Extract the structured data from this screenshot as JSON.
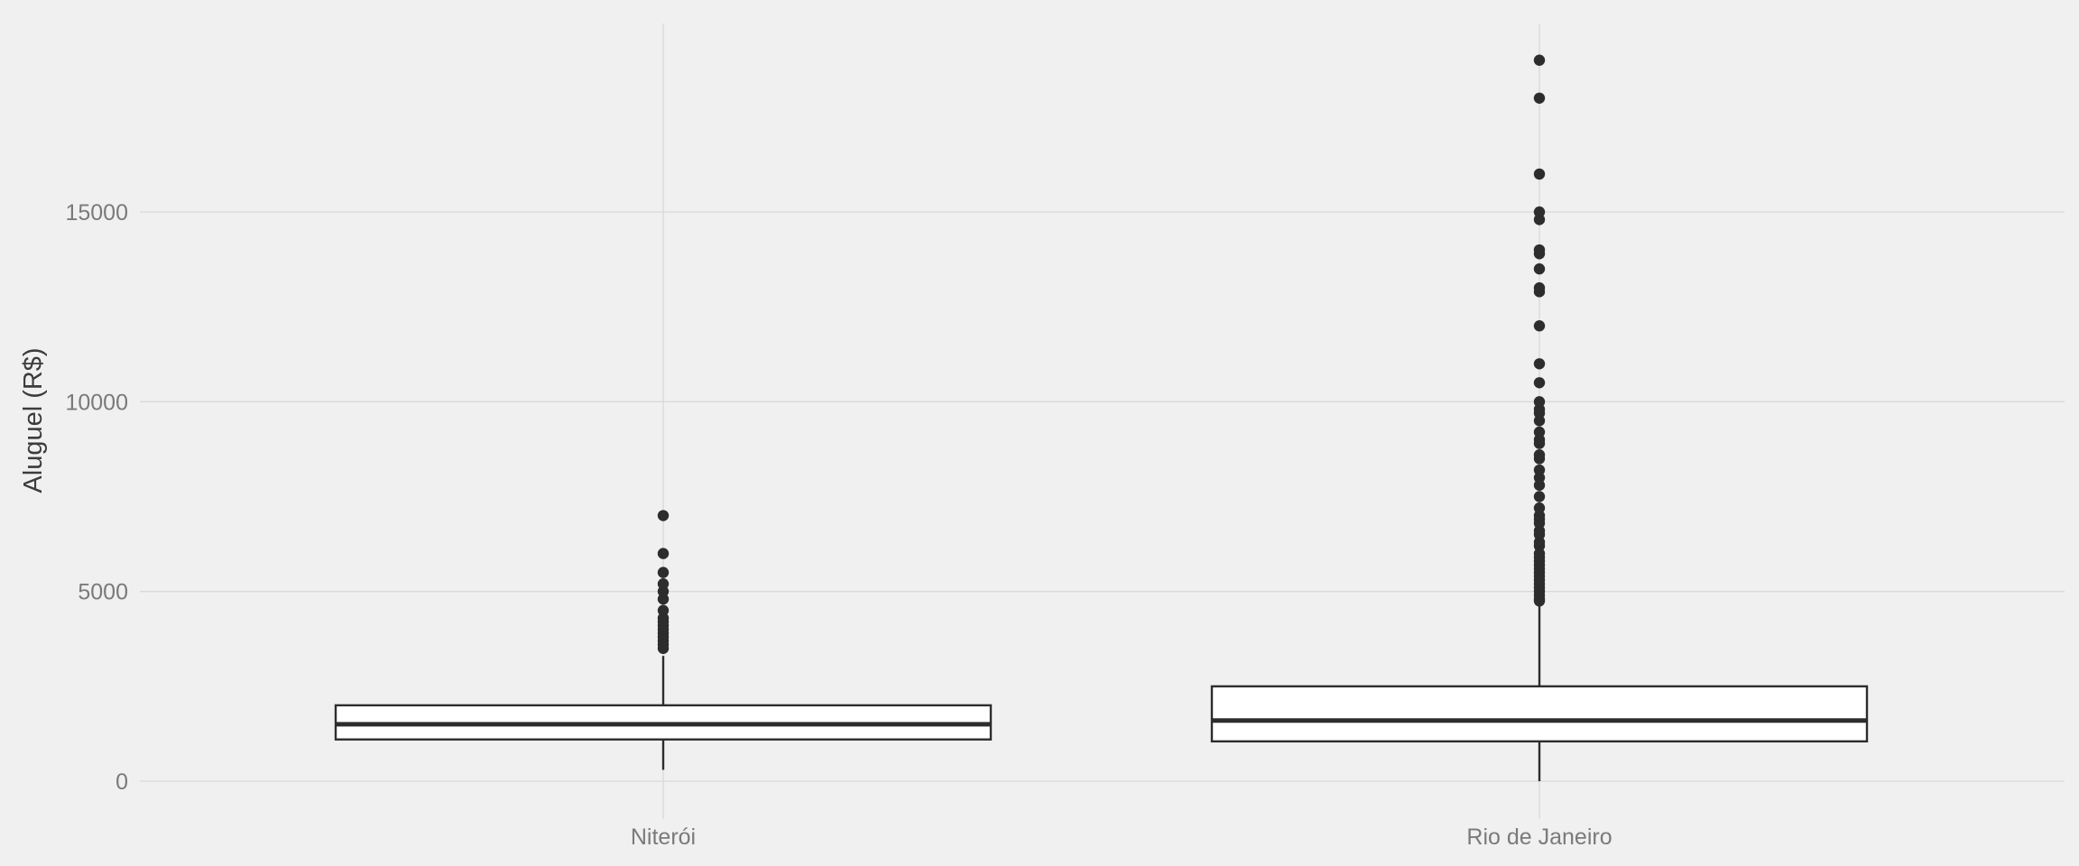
{
  "chart_data": {
    "type": "box",
    "title": "",
    "xlabel": "",
    "ylabel": "Aluguel (R$)",
    "ylim": [
      -400,
      20000
    ],
    "yticks": [
      0,
      5000,
      10000,
      15000
    ],
    "grid": true,
    "categories": [
      "Niterói",
      "Rio de Janeiro"
    ],
    "boxes": [
      {
        "category": "Niterói",
        "whisker_low": 300,
        "q1": 1100,
        "median": 1500,
        "q3": 2000,
        "whisker_high": 3300,
        "outliers": [
          3500,
          3600,
          3700,
          3800,
          3900,
          4000,
          4100,
          4200,
          4300,
          4500,
          4800,
          5000,
          5200,
          5500,
          6000,
          7000
        ]
      },
      {
        "category": "Rio de Janeiro",
        "whisker_low": 0,
        "q1": 1050,
        "median": 1600,
        "q3": 2500,
        "whisker_high": 4700,
        "outliers": [
          4750,
          4800,
          4900,
          5000,
          5100,
          5200,
          5300,
          5400,
          5500,
          5600,
          5700,
          5800,
          5900,
          6000,
          6200,
          6300,
          6500,
          6600,
          6800,
          6900,
          7000,
          7200,
          7500,
          7800,
          8000,
          8200,
          8500,
          8600,
          8900,
          9000,
          9200,
          9500,
          9700,
          9800,
          10000,
          10500,
          11000,
          12000,
          12900,
          13000,
          13500,
          13900,
          14000,
          14800,
          15000,
          16000,
          18000,
          19000
        ]
      }
    ],
    "colors": {
      "background": "#f0f0f0",
      "grid": "#d9d9d9",
      "box_fill": "#ffffff",
      "stroke": "#2d2d2d",
      "tick_text": "#7a7a7a",
      "axis_title": "#3c3c3c"
    }
  }
}
